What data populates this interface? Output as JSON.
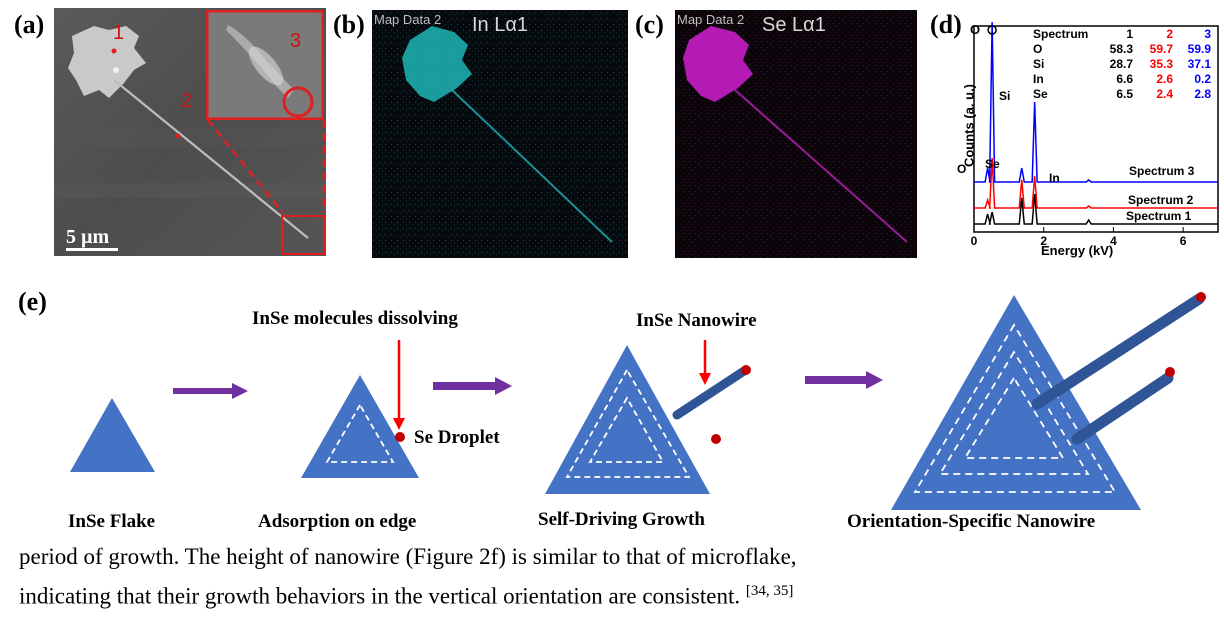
{
  "panel_labels": {
    "a": "(a)",
    "b": "(b)",
    "c": "(c)",
    "d": "(d)",
    "e": "(e)"
  },
  "panel_a": {
    "points": [
      "1",
      "2",
      "3"
    ],
    "scale_bar": "5 µm"
  },
  "panel_b": {
    "overlay_left": "Map Data 2",
    "element": "In Lα1",
    "color": "#2fd3d3"
  },
  "panel_c": {
    "overlay_left": "Map Data 2",
    "element": "Se Lα1",
    "color": "#e020e0"
  },
  "panel_d": {
    "table_header": [
      "Spectrum",
      "1",
      "2",
      "3"
    ],
    "table_rows": [
      {
        "el": "O",
        "v1": "58.3",
        "v2": "59.7",
        "v3": "59.9"
      },
      {
        "el": "Si",
        "v1": "28.7",
        "v2": "35.3",
        "v3": "37.1"
      },
      {
        "el": "In",
        "v1": "6.6",
        "v2": "2.6",
        "v3": "0.2"
      },
      {
        "el": "Se",
        "v1": "6.5",
        "v2": "2.4",
        "v3": "2.8"
      }
    ],
    "peak_labels": {
      "O": "O",
      "Si": "Si",
      "Se": "Se",
      "In": "In"
    },
    "spectrum_names": [
      "Spectrum 3",
      "Spectrum 2",
      "Spectrum 1"
    ],
    "colors": {
      "s1": "#000000",
      "s2": "#ff0000",
      "s3": "#0000ff"
    }
  },
  "chart_data": {
    "type": "line",
    "title": "",
    "xlabel": "Energy (kV)",
    "ylabel": "Counts (a. u.)",
    "xlim": [
      0,
      7
    ],
    "x_ticks": [
      "0",
      "2",
      "4",
      "6"
    ],
    "series": [
      {
        "name": "Spectrum 1",
        "peaks_kV": [
          0.39,
          0.52,
          1.37,
          1.74,
          3.29
        ]
      },
      {
        "name": "Spectrum 2",
        "peaks_kV": [
          0.39,
          0.52,
          1.37,
          1.74,
          3.29
        ]
      },
      {
        "name": "Spectrum 3",
        "peaks_kV": [
          0.39,
          0.52,
          1.37,
          1.74,
          3.29
        ]
      }
    ]
  },
  "panel_e": {
    "stages": [
      "InSe Flake",
      "Adsorption on edge",
      "Self-Driving Growth",
      "Orientation-Specific Nanowire"
    ],
    "annotation_dissolving": "InSe molecules dissolving",
    "annotation_droplet": "Se Droplet",
    "annotation_nanowire": "InSe Nanowire",
    "colors": {
      "flake": "#4472c4",
      "wire": "#2f5597",
      "arrow": "#7030a0",
      "red": "#ff0000",
      "droplet": "#c00000"
    }
  },
  "body_text": {
    "line1": "period of growth. The height of nanowire (Figure 2f) is similar to that of microflake,",
    "line2": "indicating that their growth behaviors in the vertical orientation are consistent.",
    "citation": "[34, 35]"
  }
}
